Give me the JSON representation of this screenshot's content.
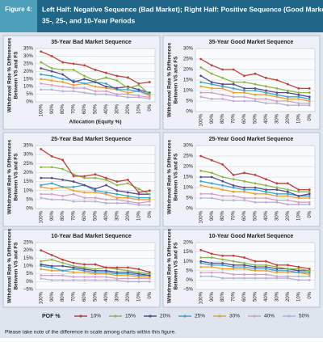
{
  "figure_label": "Figure 4:",
  "figure_title": [
    "Left Half: Negative Sequence (Bad Market); Right Half: Positive Sequence (Good Market) for",
    "35-, 25-, and 10-Year Periods"
  ],
  "legend_title": "POF %",
  "note": "Please take note of the difference in scale among charts within this figure.",
  "chart_data": [
    {
      "type": "line",
      "title": "35-Year Bad Market Sequence",
      "x_label": "Allocation (Equity %)",
      "y_label": [
        "Withdrawal Rate % Differences",
        "Between VS and FS"
      ],
      "categories": [
        "100%",
        "90%",
        "80%",
        "70%",
        "60%",
        "50%",
        "40%",
        "30%",
        "20%",
        "10%",
        "0%"
      ],
      "ylim": [
        0,
        35
      ],
      "yticks": [
        {
          "value": 0,
          "label": "0%"
        },
        {
          "value": 5,
          "label": "5%"
        },
        {
          "value": 10,
          "label": "10%"
        },
        {
          "value": 15,
          "label": "15%"
        },
        {
          "value": 20,
          "label": "20%"
        },
        {
          "value": 25,
          "label": "25%"
        },
        {
          "value": 30,
          "label": "30%"
        },
        {
          "value": 35,
          "label": "35%"
        }
      ],
      "series": [
        {
          "name": "10%",
          "color": "#c0403a",
          "values": [
            33,
            30,
            26,
            25,
            24,
            21,
            19,
            17,
            16,
            12,
            13
          ]
        },
        {
          "name": "15%",
          "color": "#8cb84a",
          "values": [
            26,
            22,
            21,
            21,
            17,
            14,
            16,
            14,
            9,
            11,
            5
          ]
        },
        {
          "name": "20%",
          "color": "#5a4a8c",
          "values": [
            22,
            20,
            18,
            13,
            15,
            13,
            10,
            9,
            10,
            8,
            6
          ]
        },
        {
          "name": "25%",
          "color": "#3aa6d6",
          "values": [
            18,
            17,
            15,
            14,
            12,
            13,
            12,
            8,
            8,
            7,
            5
          ]
        },
        {
          "name": "30%",
          "color": "#f0a030",
          "values": [
            15,
            14,
            13,
            11,
            12,
            10,
            9,
            8,
            6,
            7,
            4
          ]
        },
        {
          "name": "40%",
          "color": "#d4a0c4",
          "values": [
            12,
            11,
            10,
            9,
            9,
            7,
            7,
            5,
            5,
            4,
            3
          ]
        },
        {
          "name": "50%",
          "color": "#b8b0d8",
          "values": [
            8,
            8,
            7,
            7,
            6,
            5,
            5,
            4,
            3,
            3,
            2
          ]
        }
      ]
    },
    {
      "type": "line",
      "title": "35-Year Good Market Sequence",
      "y_label": [
        "Withdrawal Rate % Differences",
        "Between VS and FS"
      ],
      "categories": [
        "100%",
        "90%",
        "80%",
        "70%",
        "60%",
        "50%",
        "40%",
        "30%",
        "20%",
        "10%",
        "0%"
      ],
      "ylim": [
        0,
        30
      ],
      "yticks": [
        {
          "value": 0,
          "label": "0%"
        },
        {
          "value": 5,
          "label": "5%"
        },
        {
          "value": 10,
          "label": "10%"
        },
        {
          "value": 15,
          "label": "15%"
        },
        {
          "value": 20,
          "label": "20%"
        },
        {
          "value": 25,
          "label": "25%"
        },
        {
          "value": 30,
          "label": "30%"
        }
      ],
      "series": [
        {
          "name": "10%",
          "color": "#c0403a",
          "values": [
            25,
            22,
            20,
            20,
            17,
            18,
            16,
            15,
            13,
            11,
            11
          ]
        },
        {
          "name": "15%",
          "color": "#8cb84a",
          "values": [
            21,
            18,
            16,
            14,
            14,
            13,
            12,
            11,
            10,
            9,
            9
          ]
        },
        {
          "name": "20%",
          "color": "#5a4a8c",
          "values": [
            17,
            14,
            13,
            13,
            11,
            11,
            10,
            9,
            9,
            8,
            7
          ]
        },
        {
          "name": "25%",
          "color": "#3aa6d6",
          "values": [
            14,
            13,
            12,
            11,
            10,
            10,
            9,
            8,
            7,
            7,
            6
          ]
        },
        {
          "name": "30%",
          "color": "#f0a030",
          "values": [
            12,
            11,
            11,
            9,
            9,
            8,
            8,
            7,
            6,
            6,
            5
          ]
        },
        {
          "name": "40%",
          "color": "#d4a0c4",
          "values": [
            9,
            9,
            8,
            7,
            7,
            6,
            6,
            5,
            5,
            4,
            4
          ]
        },
        {
          "name": "50%",
          "color": "#b8b0d8",
          "values": [
            7,
            6,
            6,
            5,
            5,
            5,
            4,
            4,
            3,
            3,
            3
          ]
        }
      ]
    },
    {
      "type": "line",
      "title": "25-Year Bad Market Sequence",
      "y_label": [
        "Withdrawal Rate % Differences",
        "Between VS and FS"
      ],
      "categories": [
        "100%",
        "90%",
        "80%",
        "70%",
        "60%",
        "50%",
        "40%",
        "30%",
        "20%",
        "10%",
        "0%"
      ],
      "ylim": [
        0,
        35
      ],
      "yticks": [
        {
          "value": 0,
          "label": "0%"
        },
        {
          "value": 5,
          "label": "5%"
        },
        {
          "value": 10,
          "label": "10%"
        },
        {
          "value": 15,
          "label": "15%"
        },
        {
          "value": 20,
          "label": "20%"
        },
        {
          "value": 25,
          "label": "25%"
        },
        {
          "value": 30,
          "label": "30%"
        },
        {
          "value": 35,
          "label": "35%"
        }
      ],
      "series": [
        {
          "name": "10%",
          "color": "#c0403a",
          "values": [
            33,
            29,
            27,
            18,
            18,
            19,
            17,
            15,
            16,
            9,
            10
          ]
        },
        {
          "name": "15%",
          "color": "#8cb84a",
          "values": [
            23,
            23,
            22,
            19,
            17,
            17,
            16,
            13,
            14,
            11,
            8
          ]
        },
        {
          "name": "20%",
          "color": "#5a4a8c",
          "values": [
            17,
            17,
            16,
            15,
            13,
            11,
            13,
            10,
            9,
            8,
            8
          ]
        },
        {
          "name": "25%",
          "color": "#3aa6d6",
          "values": [
            13,
            14,
            12,
            12,
            13,
            10,
            9,
            8,
            7,
            6,
            6
          ]
        },
        {
          "name": "30%",
          "color": "#f0a030",
          "values": [
            12,
            11,
            12,
            10,
            9,
            9,
            8,
            6,
            6,
            5,
            5
          ]
        },
        {
          "name": "40%",
          "color": "#d4a0c4",
          "values": [
            8,
            8,
            7,
            8,
            6,
            6,
            5,
            5,
            4,
            3,
            4
          ]
        },
        {
          "name": "50%",
          "color": "#b8b0d8",
          "values": [
            6,
            5,
            5,
            4,
            4,
            4,
            3,
            3,
            3,
            2,
            2
          ]
        }
      ]
    },
    {
      "type": "line",
      "title": "25-Year Good Market Sequence",
      "y_label": [
        "Withdrawal Rate % Differences",
        "Between VS and FS"
      ],
      "categories": [
        "100%",
        "90%",
        "80%",
        "70%",
        "60%",
        "50%",
        "40%",
        "30%",
        "20%",
        "10%",
        "0%"
      ],
      "ylim": [
        0,
        30
      ],
      "yticks": [
        {
          "value": 0,
          "label": "0%"
        },
        {
          "value": 5,
          "label": "5%"
        },
        {
          "value": 10,
          "label": "10%"
        },
        {
          "value": 15,
          "label": "15%"
        },
        {
          "value": 20,
          "label": "20%"
        },
        {
          "value": 25,
          "label": "25%"
        },
        {
          "value": 30,
          "label": "30%"
        }
      ],
      "series": [
        {
          "name": "10%",
          "color": "#c0403a",
          "values": [
            25,
            23,
            21,
            16,
            17,
            16,
            14,
            12,
            12,
            9,
            9
          ]
        },
        {
          "name": "15%",
          "color": "#8cb84a",
          "values": [
            18,
            17,
            15,
            14,
            13,
            12,
            11,
            10,
            9,
            8,
            8
          ]
        },
        {
          "name": "20%",
          "color": "#5a4a8c",
          "values": [
            15,
            15,
            13,
            11,
            10,
            10,
            9,
            9,
            8,
            6,
            7
          ]
        },
        {
          "name": "25%",
          "color": "#3aa6d6",
          "values": [
            13,
            12,
            11,
            10,
            9,
            9,
            8,
            7,
            7,
            6,
            6
          ]
        },
        {
          "name": "30%",
          "color": "#f0a030",
          "values": [
            11,
            10,
            9,
            8,
            8,
            7,
            7,
            6,
            6,
            5,
            5
          ]
        },
        {
          "name": "40%",
          "color": "#d4a0c4",
          "values": [
            7,
            7,
            6,
            6,
            5,
            5,
            5,
            4,
            4,
            3,
            3
          ]
        },
        {
          "name": "50%",
          "color": "#b8b0d8",
          "values": [
            5,
            5,
            4,
            4,
            4,
            3,
            3,
            3,
            2,
            2,
            2
          ]
        }
      ]
    },
    {
      "type": "line",
      "title": "10-Year Bad Market Sequence",
      "y_label": [
        "Withdrawal Rate % Differences",
        "Between VS and FS"
      ],
      "categories": [
        "100%",
        "90%",
        "80%",
        "70%",
        "60%",
        "50%",
        "40%",
        "30%",
        "20%",
        "10%",
        "0%"
      ],
      "ylim": [
        -5,
        25
      ],
      "yticks": [
        {
          "value": -5,
          "label": "–5%"
        },
        {
          "value": 0,
          "label": "0%"
        },
        {
          "value": 5,
          "label": "5%"
        },
        {
          "value": 10,
          "label": "10%"
        },
        {
          "value": 15,
          "label": "15%"
        },
        {
          "value": 20,
          "label": "20%"
        },
        {
          "value": 25,
          "label": "25%"
        }
      ],
      "series": [
        {
          "name": "10%",
          "color": "#c0403a",
          "values": [
            20,
            17,
            14,
            12,
            11,
            11,
            9,
            9,
            9,
            8,
            6
          ]
        },
        {
          "name": "15%",
          "color": "#8cb84a",
          "values": [
            13,
            14,
            12,
            10,
            9,
            8,
            9,
            8,
            7,
            6,
            5
          ]
        },
        {
          "name": "20%",
          "color": "#5a4a8c",
          "values": [
            11,
            10,
            10,
            9,
            8,
            7,
            7,
            6,
            6,
            5,
            4
          ]
        },
        {
          "name": "25%",
          "color": "#3aa6d6",
          "values": [
            10,
            9,
            7,
            8,
            7,
            6,
            6,
            5,
            5,
            4,
            4
          ]
        },
        {
          "name": "30%",
          "color": "#f0a030",
          "values": [
            8,
            7,
            7,
            6,
            6,
            5,
            5,
            4,
            4,
            3,
            3
          ]
        },
        {
          "name": "40%",
          "color": "#d4a0c4",
          "values": [
            4,
            4,
            4,
            3,
            3,
            3,
            3,
            2,
            2,
            2,
            2
          ]
        },
        {
          "name": "50%",
          "color": "#b8b0d8",
          "values": [
            2,
            1,
            1,
            1,
            1,
            1,
            1,
            1,
            0,
            0,
            0
          ]
        }
      ]
    },
    {
      "type": "line",
      "title": "10-Year Good Market Sequence",
      "y_label": [
        "Withdrawal Rate % Differences",
        "Between VS and FS"
      ],
      "categories": [
        "100%",
        "90%",
        "80%",
        "70%",
        "60%",
        "50%",
        "40%",
        "30%",
        "20%",
        "10%",
        "0%"
      ],
      "ylim": [
        -5,
        20
      ],
      "yticks": [
        {
          "value": -5,
          "label": "–5%"
        },
        {
          "value": 0,
          "label": "0%"
        },
        {
          "value": 5,
          "label": "5%"
        },
        {
          "value": 10,
          "label": "10%"
        },
        {
          "value": 15,
          "label": "15%"
        },
        {
          "value": 20,
          "label": "20%"
        }
      ],
      "series": [
        {
          "name": "10%",
          "color": "#c0403a",
          "values": [
            16,
            14,
            13,
            13,
            12,
            10,
            10,
            8,
            8,
            7,
            6
          ]
        },
        {
          "name": "15%",
          "color": "#8cb84a",
          "values": [
            12,
            12,
            11,
            10,
            9,
            8,
            8,
            7,
            6,
            6,
            5
          ]
        },
        {
          "name": "20%",
          "color": "#5a4a8c",
          "values": [
            10,
            9,
            9,
            8,
            8,
            7,
            7,
            6,
            6,
            5,
            5
          ]
        },
        {
          "name": "25%",
          "color": "#3aa6d6",
          "values": [
            9,
            8,
            8,
            7,
            7,
            6,
            6,
            5,
            5,
            4,
            4
          ]
        },
        {
          "name": "30%",
          "color": "#f0a030",
          "values": [
            7,
            7,
            6,
            6,
            6,
            5,
            5,
            4,
            4,
            4,
            3
          ]
        },
        {
          "name": "40%",
          "color": "#d4a0c4",
          "values": [
            4,
            4,
            4,
            3,
            3,
            3,
            3,
            2,
            2,
            2,
            2
          ]
        },
        {
          "name": "50%",
          "color": "#b8b0d8",
          "values": [
            2,
            2,
            1,
            1,
            1,
            1,
            1,
            1,
            1,
            0,
            0
          ]
        }
      ]
    }
  ]
}
